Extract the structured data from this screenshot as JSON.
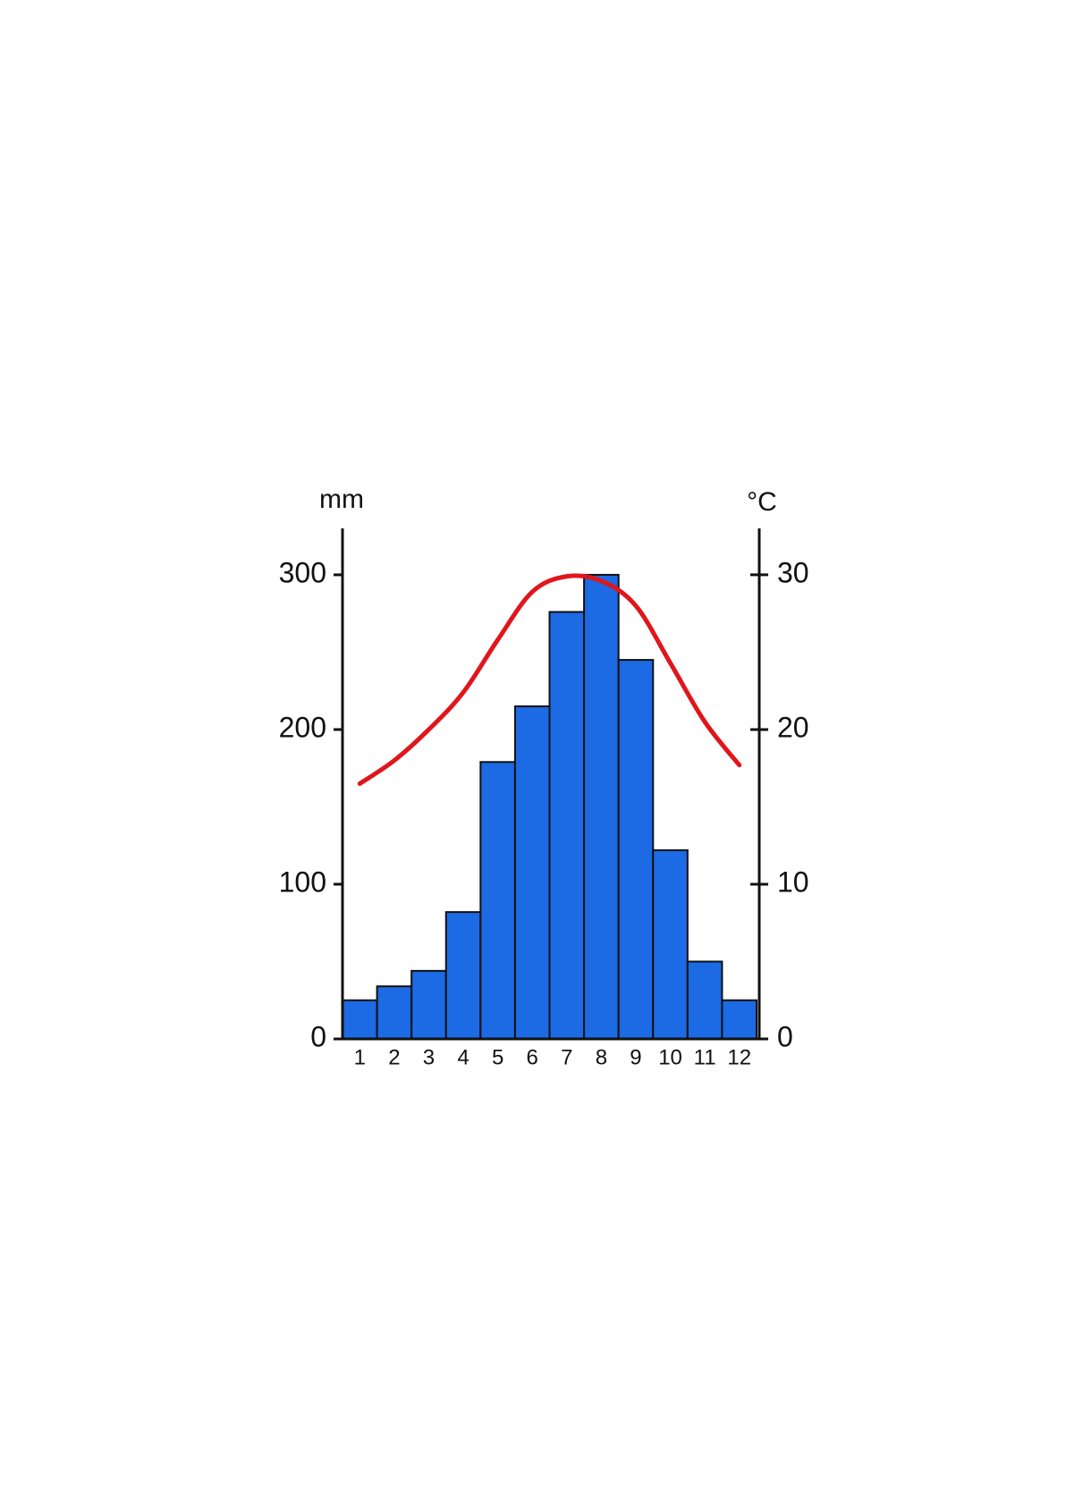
{
  "chart_data": {
    "type": "bar-line",
    "y_label": "mm",
    "y2_label": "°C",
    "categories": [
      "1",
      "2",
      "3",
      "4",
      "5",
      "6",
      "7",
      "8",
      "9",
      "10",
      "11",
      "12"
    ],
    "series": [
      {
        "type": "bar",
        "color": "#1c6ae4",
        "values": [
          25,
          34,
          44,
          82,
          179,
          215,
          276,
          300,
          245,
          122,
          50,
          25
        ]
      },
      {
        "type": "line",
        "color": "#e0161b",
        "axis": "y2",
        "values": [
          16.5,
          18,
          20,
          22.4,
          25.8,
          28.9,
          29.9,
          29.6,
          28,
          24.3,
          20.5,
          17.7
        ]
      }
    ],
    "ylim": [
      0,
      330
    ],
    "yticks": [
      0,
      100,
      200,
      300
    ],
    "y2lim": [
      0,
      33
    ],
    "y2ticks": [
      0,
      10,
      20,
      30
    ]
  }
}
